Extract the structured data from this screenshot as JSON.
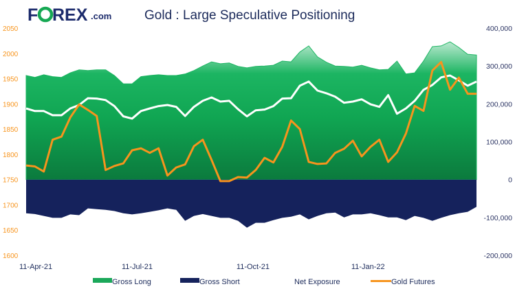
{
  "logo": {
    "text": "FOREX.com",
    "colors": {
      "navy": "#1b2a6b",
      "green": "#16a853"
    }
  },
  "chart_data": {
    "type": "area",
    "title": "Gold : Large Speculative Positioning",
    "x_tick_labels": [
      {
        "index": 0,
        "label": "11-Apr-21"
      },
      {
        "index": 13,
        "label": "11-Jul-21"
      },
      {
        "index": 26,
        "label": "11-Oct-21"
      },
      {
        "index": 39,
        "label": "11-Jan-22"
      }
    ],
    "left_axis": {
      "ylim": [
        1600,
        2050
      ],
      "ticks": [
        "2050",
        "2000",
        "1950",
        "1900",
        "1850",
        "1800",
        "1750",
        "1700",
        "1650",
        "1600"
      ],
      "color": "#f7941d"
    },
    "right_axis": {
      "ylim": [
        -200000,
        400000
      ],
      "ticks": [
        "400,000",
        "300,000",
        "200,000",
        "100,000",
        "0",
        "-100,000",
        "-200,000"
      ],
      "color": "#2b3463"
    },
    "grid": false,
    "legend_position": "bottom",
    "series": [
      {
        "name": "Gross Long",
        "axis": "right",
        "type": "area",
        "color": "#13ad58",
        "values": [
          275000,
          270000,
          277000,
          272000,
          270000,
          282000,
          290000,
          288000,
          290000,
          290000,
          275000,
          253000,
          253000,
          272000,
          275000,
          277000,
          275000,
          275000,
          279000,
          288000,
          300000,
          311000,
          306000,
          308000,
          299000,
          295000,
          299000,
          300000,
          302000,
          313000,
          311000,
          337000,
          353000,
          324000,
          310000,
          300000,
          299000,
          297000,
          302000,
          295000,
          290000,
          291000,
          313000,
          279000,
          282000,
          313000,
          351000,
          353000,
          364000,
          349000,
          331000,
          329000
        ]
      },
      {
        "name": "Gross Short",
        "axis": "right",
        "type": "area",
        "color": "#15225c",
        "values": [
          -89000,
          -91000,
          -96000,
          -101000,
          -101000,
          -92000,
          -94000,
          -76000,
          -78000,
          -80000,
          -83000,
          -89000,
          -92000,
          -89000,
          -85000,
          -81000,
          -76000,
          -80000,
          -109000,
          -96000,
          -91000,
          -96000,
          -101000,
          -101000,
          -109000,
          -127000,
          -114000,
          -114000,
          -107000,
          -101000,
          -98000,
          -92000,
          -105000,
          -96000,
          -89000,
          -87000,
          -100000,
          -92000,
          -92000,
          -89000,
          -94000,
          -100000,
          -100000,
          -107000,
          -96000,
          -101000,
          -109000,
          -101000,
          -94000,
          -89000,
          -85000,
          -72000
        ]
      },
      {
        "name": "Net Exposure",
        "axis": "right",
        "type": "line",
        "color": "#ffffff",
        "values": [
          188000,
          181000,
          181000,
          170000,
          170000,
          188000,
          197000,
          215000,
          214000,
          210000,
          194000,
          167000,
          161000,
          181000,
          188000,
          194000,
          197000,
          192000,
          168000,
          192000,
          208000,
          217000,
          206000,
          208000,
          186000,
          167000,
          183000,
          185000,
          194000,
          214000,
          215000,
          248000,
          259000,
          235000,
          228000,
          219000,
          203000,
          206000,
          212000,
          199000,
          192000,
          223000,
          174000,
          188000,
          208000,
          237000,
          250000,
          270000,
          275000,
          262000,
          248000,
          259000
        ]
      },
      {
        "name": "Gold Futures",
        "axis": "left",
        "type": "line",
        "color": "#f7941d",
        "values": [
          1778,
          1776,
          1766,
          1829,
          1835,
          1873,
          1899,
          1888,
          1876,
          1769,
          1777,
          1782,
          1808,
          1812,
          1803,
          1812,
          1758,
          1774,
          1780,
          1816,
          1829,
          1789,
          1747,
          1747,
          1755,
          1754,
          1769,
          1793,
          1784,
          1815,
          1867,
          1850,
          1785,
          1781,
          1782,
          1803,
          1811,
          1827,
          1796,
          1815,
          1829,
          1785,
          1804,
          1841,
          1896,
          1886,
          1966,
          1983,
          1928,
          1952,
          1920,
          1920
        ]
      }
    ]
  }
}
